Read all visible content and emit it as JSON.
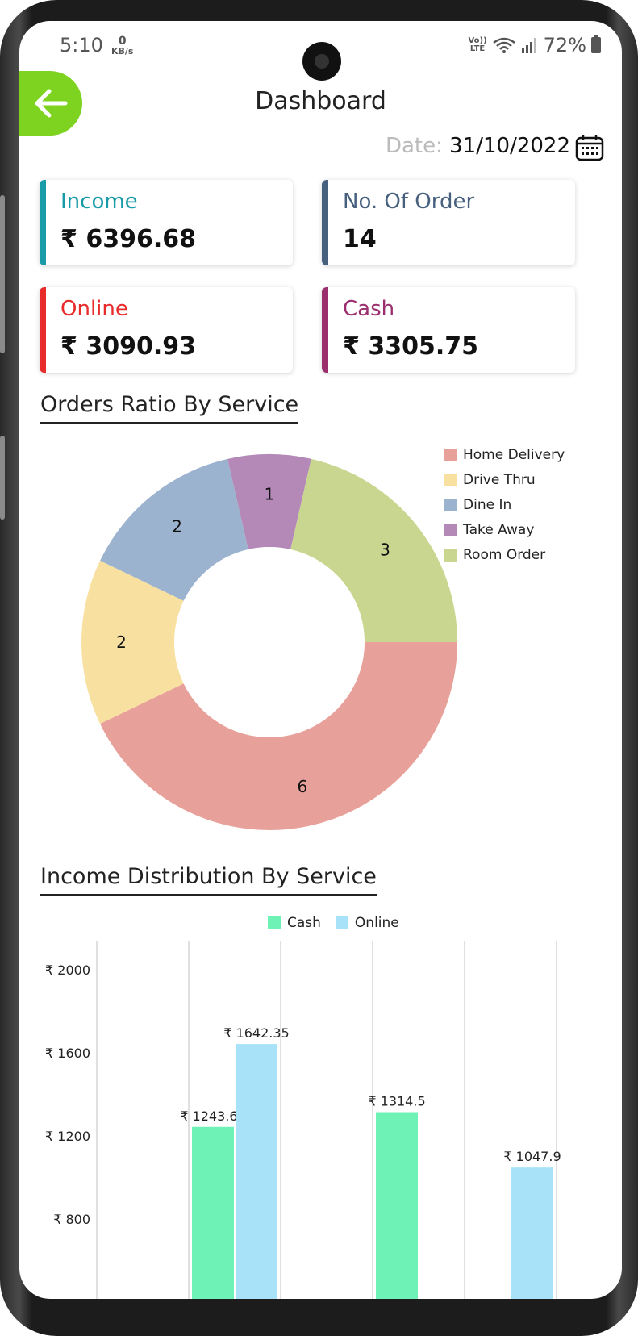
{
  "status_bar": {
    "time": "5:10",
    "net_speed_value": "0",
    "net_speed_unit": "KB/s",
    "volte_top": "Vo))",
    "volte_bottom": "LTE",
    "battery": "72%"
  },
  "header": {
    "title": "Dashboard",
    "date_label": "Date:",
    "date_value": "31/10/2022"
  },
  "cards": [
    {
      "label": "Income",
      "value": "₹ 6396.68",
      "color": "#1a9ba8"
    },
    {
      "label": "No. Of Order",
      "value": "14",
      "color": "#46607e"
    },
    {
      "label": "Online",
      "value": "₹ 3090.93",
      "color": "#e82c2c"
    },
    {
      "label": "Cash",
      "value": "₹ 3305.75",
      "color": "#9b2f6e"
    }
  ],
  "sections": {
    "orders_ratio_title": "Orders Ratio By Service",
    "income_distribution_title": "Income Distribution By Service"
  },
  "chart_data": [
    {
      "type": "pie",
      "title": "Orders Ratio By Service",
      "categories": [
        "Home Delivery",
        "Drive Thru",
        "Dine In",
        "Take Away",
        "Room Order"
      ],
      "values": [
        6,
        2,
        2,
        1,
        3
      ],
      "colors": [
        "#e8a19a",
        "#f8e0a0",
        "#9cb3cf",
        "#b489b8",
        "#c8d68f"
      ],
      "legend": "top-right",
      "donut": true
    },
    {
      "type": "bar",
      "title": "Income Distribution By Service",
      "categories": [
        "",
        "",
        "",
        "",
        ""
      ],
      "series": [
        {
          "name": "Cash",
          "color": "#6ef2b5",
          "values": [
            null,
            1243.65,
            null,
            1314.5,
            null
          ],
          "labels": [
            "",
            "₹ 1243.65",
            "",
            "₹ 1314.5",
            ""
          ]
        },
        {
          "name": "Online",
          "color": "#a8e2f8",
          "values": [
            null,
            1642.35,
            null,
            null,
            1047.9
          ],
          "labels": [
            "",
            "₹ 1642.35",
            "",
            "",
            "₹ 1047.9"
          ]
        }
      ],
      "y_ticks": [
        "₹ 2000",
        "₹ 1600",
        "₹ 1200",
        "₹ 800"
      ],
      "y_tick_values": [
        2000,
        1600,
        1200,
        800
      ],
      "legend": "top-center",
      "grid": true
    }
  ]
}
